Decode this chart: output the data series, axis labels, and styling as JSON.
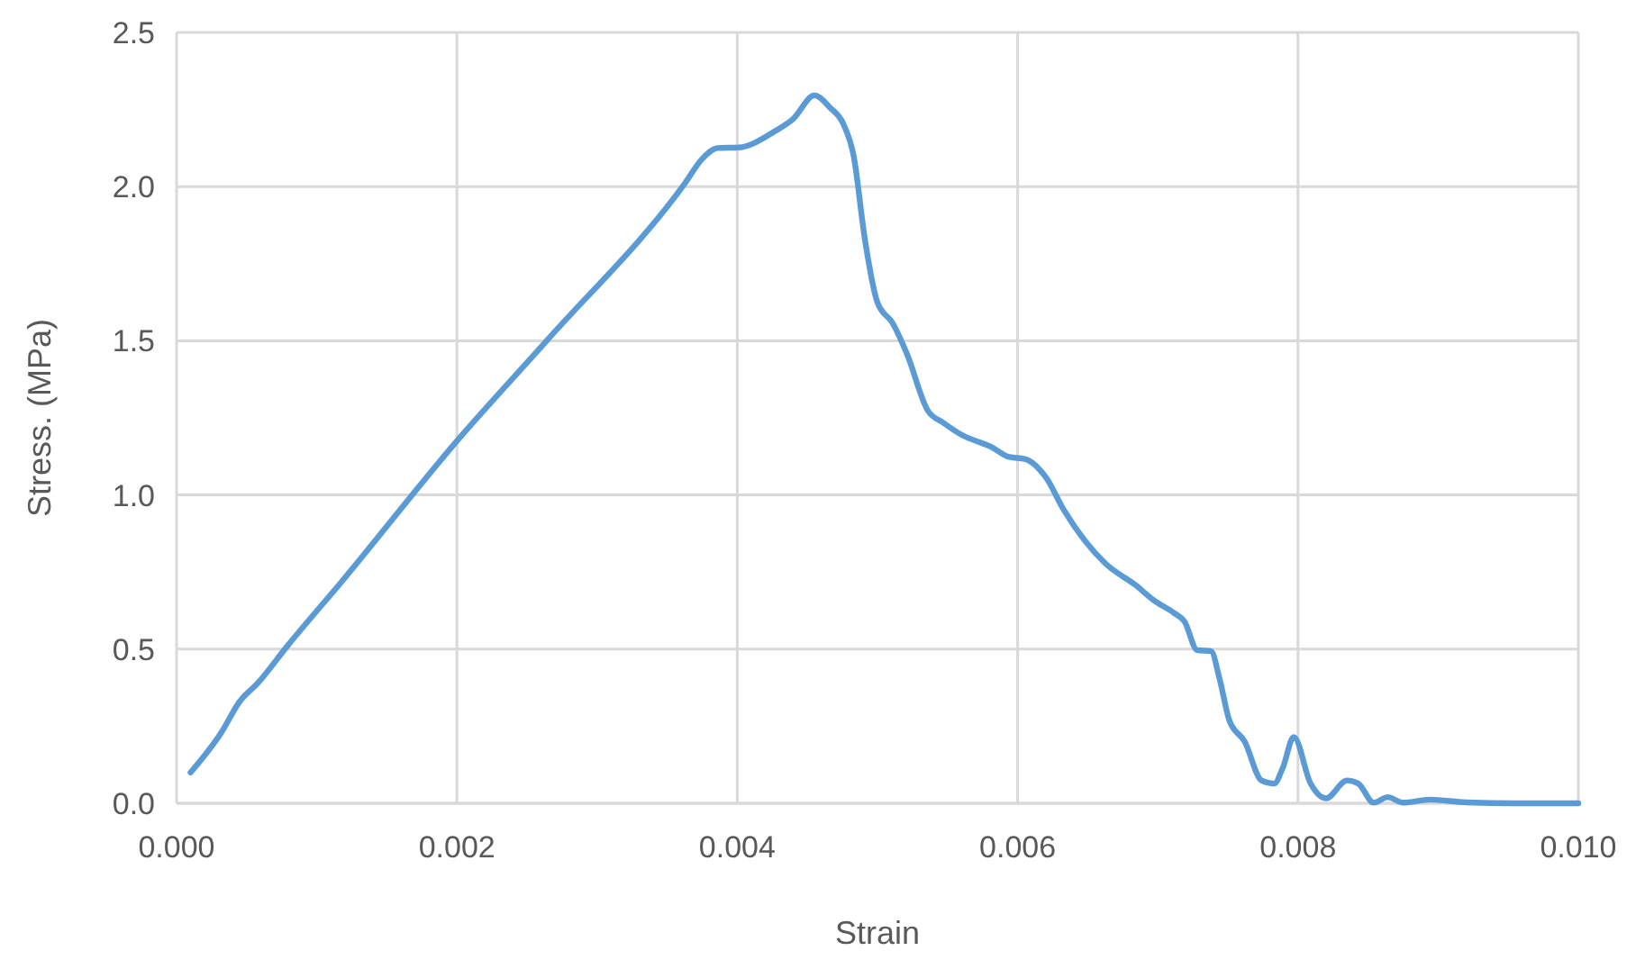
{
  "chart_data": {
    "type": "line",
    "xlabel": "Strain",
    "ylabel": "Stress. (MPa)",
    "xlim": [
      0,
      0.01
    ],
    "ylim": [
      0,
      2.5
    ],
    "xticks": [
      {
        "value": 0,
        "label": "0.000"
      },
      {
        "value": 0.002,
        "label": "0.002"
      },
      {
        "value": 0.004,
        "label": "0.004"
      },
      {
        "value": 0.006,
        "label": "0.006"
      },
      {
        "value": 0.008,
        "label": "0.008"
      },
      {
        "value": 0.01,
        "label": "0.010"
      }
    ],
    "yticks": [
      {
        "value": 0,
        "label": "0.0"
      },
      {
        "value": 0.5,
        "label": "0.5"
      },
      {
        "value": 1,
        "label": "1.0"
      },
      {
        "value": 1.5,
        "label": "1.5"
      },
      {
        "value": 2,
        "label": "2.0"
      },
      {
        "value": 2.5,
        "label": "2.5"
      }
    ],
    "grid": true,
    "marker": "none",
    "line_style": "solid",
    "series": [
      {
        "color": "#5b9bd5",
        "x": [
          0.0001,
          0.00032,
          0.00045,
          0.00058,
          0.00079,
          0.00118,
          0.002,
          0.00264,
          0.003625,
          0.00375,
          0.00386,
          0.00401,
          0.00427,
          0.0044,
          0.00455,
          0.00466,
          0.00476,
          0.00483,
          0.00491,
          0.005,
          0.00511,
          0.00521,
          0.00536,
          0.00547,
          0.0056,
          0.00581,
          0.00594,
          0.00605,
          0.0062,
          0.00633,
          0.00663,
          0.00684,
          0.00697,
          0.00712,
          0.00719,
          0.00728,
          0.00738,
          0.00744,
          0.00751,
          0.00762,
          0.00774,
          0.00783,
          0.00789,
          0.00797,
          0.00809,
          0.0082,
          0.00835,
          0.00843,
          0.00854,
          0.00864,
          0.00875,
          0.00894,
          0.0092,
          0.00955,
          0.01
        ],
        "values": [
          0.1,
          0.23,
          0.33,
          0.39,
          0.51,
          0.72,
          1.175,
          1.5,
          2.01,
          2.09,
          2.125,
          2.127,
          2.18,
          2.22,
          2.296,
          2.257,
          2.2,
          2.1,
          1.83,
          1.624,
          1.556,
          1.458,
          1.273,
          1.234,
          1.195,
          1.156,
          1.123,
          1.117,
          1.058,
          0.951,
          0.776,
          0.708,
          0.659,
          0.616,
          0.59,
          0.497,
          0.493,
          0.405,
          0.269,
          0.2,
          0.074,
          0.064,
          0.113,
          0.215,
          0.064,
          0.016,
          0.074,
          0.064,
          0.002,
          0.02,
          0.002,
          0.012,
          0.003,
          0,
          0
        ]
      }
    ]
  }
}
